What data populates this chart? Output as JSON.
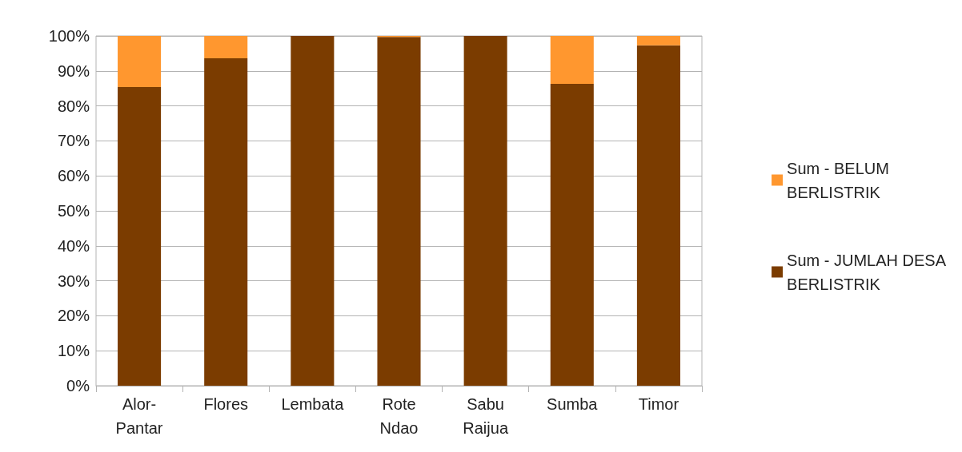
{
  "chart_data": {
    "type": "bar",
    "stacked": true,
    "categories": [
      "Alor-\nPantar",
      "Flores",
      "Lembata",
      "Rote\nNdao",
      "Sabu\nRaijua",
      "Sumba",
      "Timor"
    ],
    "series": [
      {
        "name": "Sum - JUMLAH DESA\nBERLISTRIK",
        "color": "#7b3c00",
        "values": [
          85.4,
          93.6,
          100,
          99.7,
          100,
          86.3,
          97.3
        ]
      },
      {
        "name": "Sum - BELUM\nBERLISTRIK",
        "color": "#ff972f",
        "values": [
          14.6,
          6.4,
          0,
          0.3,
          0,
          13.7,
          2.7
        ]
      }
    ],
    "ylim": [
      0,
      100
    ],
    "yticks": [
      {
        "value": 0,
        "label": "0%"
      },
      {
        "value": 10,
        "label": "10%"
      },
      {
        "value": 20,
        "label": "20%"
      },
      {
        "value": 30,
        "label": "30%"
      },
      {
        "value": 40,
        "label": "40%"
      },
      {
        "value": 50,
        "label": "50%"
      },
      {
        "value": 60,
        "label": "60%"
      },
      {
        "value": 70,
        "label": "70%"
      },
      {
        "value": 80,
        "label": "80%"
      },
      {
        "value": 90,
        "label": "90%"
      },
      {
        "value": 100,
        "label": "100%"
      }
    ],
    "grid": "y",
    "legend": "right"
  }
}
